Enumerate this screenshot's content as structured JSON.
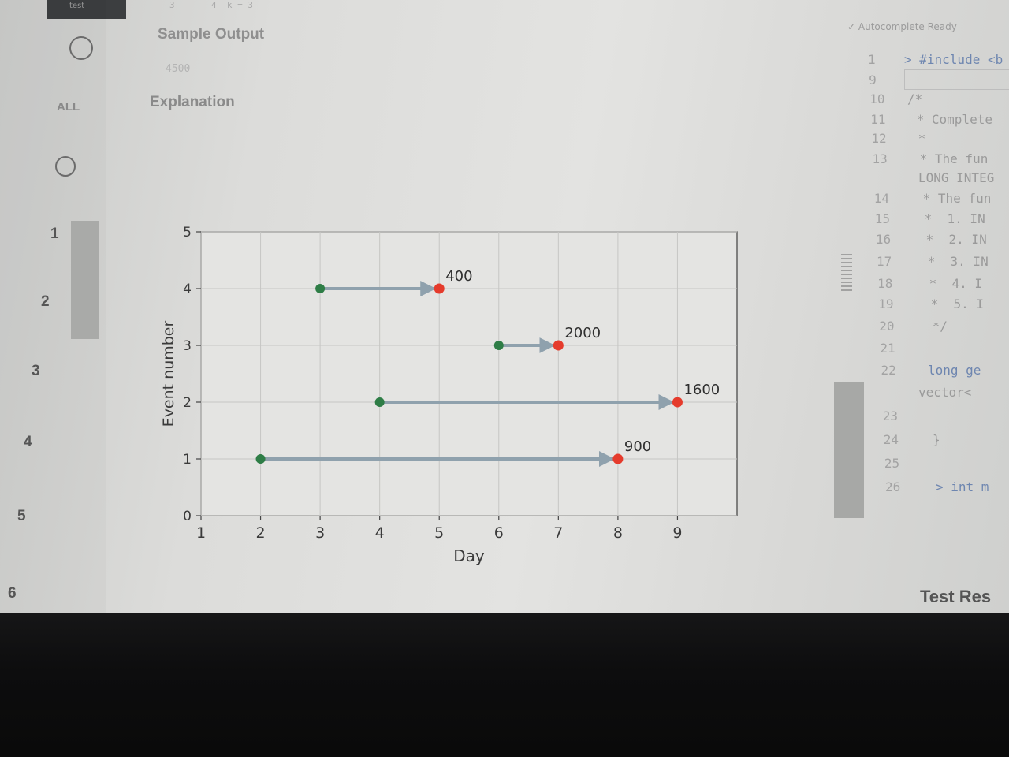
{
  "top_tab": {
    "label": "test"
  },
  "top_line": "3       4  k = 3",
  "left_rail": {
    "all_label": "ALL",
    "question_numbers": [
      "1",
      "2",
      "3",
      "4",
      "5",
      "6"
    ]
  },
  "problem": {
    "sample_output_title": "Sample Output",
    "sample_output_value": "4500",
    "explanation_title": "Explanation"
  },
  "editor": {
    "autocomplete_status": "Autocomplete Ready",
    "lines": [
      {
        "n": "1",
        "code": "> #include <b"
      },
      {
        "n": "9",
        "code": ""
      },
      {
        "n": "10",
        "code": "/*"
      },
      {
        "n": "11",
        "code": " * Complete"
      },
      {
        "n": "12",
        "code": " *"
      },
      {
        "n": "13",
        "code": " * The fun"
      },
      {
        "n": "",
        "code": "LONG_INTEG"
      },
      {
        "n": "14",
        "code": " * The fun"
      },
      {
        "n": "15",
        "code": " *  1. IN"
      },
      {
        "n": "16",
        "code": " *  2. IN"
      },
      {
        "n": "17",
        "code": " *  3. IN"
      },
      {
        "n": "18",
        "code": " *  4. I"
      },
      {
        "n": "19",
        "code": " *  5. I"
      },
      {
        "n": "20",
        "code": " */"
      },
      {
        "n": "21",
        "code": ""
      },
      {
        "n": "22",
        "code": "long ge"
      },
      {
        "n": "",
        "code": "vector<"
      },
      {
        "n": "23",
        "code": ""
      },
      {
        "n": "24",
        "code": "}"
      },
      {
        "n": "25",
        "code": ""
      },
      {
        "n": "26",
        "code": "> int m"
      }
    ],
    "test_results_label": "Test Res"
  },
  "chart_data": {
    "type": "arrow-interval",
    "xlabel": "Day",
    "ylabel": "Event number",
    "xlim": [
      1,
      10.0
    ],
    "ylim": [
      0,
      5
    ],
    "xticks": [
      1,
      2,
      3,
      4,
      5,
      6,
      7,
      8,
      9
    ],
    "yticks": [
      0,
      1,
      2,
      3,
      4,
      5
    ],
    "grid": true,
    "colors": {
      "start": "#2e7d46",
      "end": "#e53b2c",
      "arrow": "#8fa1ad"
    },
    "events": [
      {
        "event": 1,
        "start": 2,
        "end": 8,
        "label": "900"
      },
      {
        "event": 2,
        "start": 4,
        "end": 9,
        "label": "1600"
      },
      {
        "event": 3,
        "start": 6,
        "end": 7,
        "label": "2000"
      },
      {
        "event": 4,
        "start": 3,
        "end": 5,
        "label": "400"
      }
    ]
  }
}
